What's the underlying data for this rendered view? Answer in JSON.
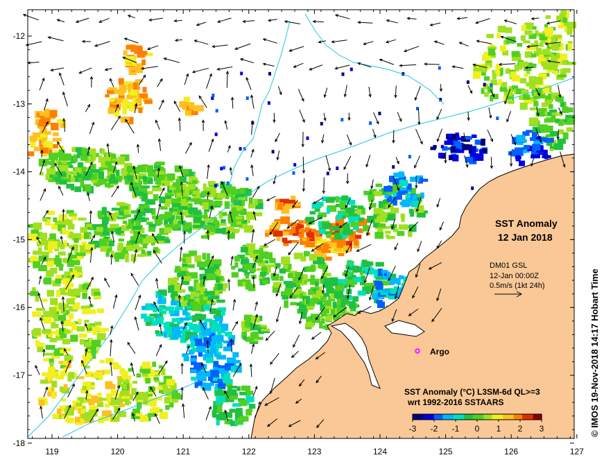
{
  "map": {
    "title_line1": "SST Anomaly",
    "title_line2": "12 Jan 2018",
    "current_source": "DM01 GSL",
    "current_time": "12-Jan 00:00Z",
    "scale_label": "0.5m/s (1kt 24h)",
    "argo_label": "Argo",
    "legend_title": "SST Anomaly (°C) L3SM-6d QL>=3",
    "legend_subtitle": "wrt 1992-2016 SSTAARS",
    "legend_ticks": [
      "-3",
      "-2",
      "-1",
      "0",
      "1",
      "2",
      "3"
    ],
    "credit": "© IMOS 19-Nov-2018 14:17 Hobart Time",
    "lon_labels": [
      "119",
      "120",
      "121",
      "122",
      "123",
      "124",
      "125",
      "126",
      "127"
    ],
    "lat_labels": [
      "-12",
      "-13",
      "-14",
      "-15",
      "-16",
      "-17",
      "-18"
    ]
  },
  "colors": {
    "land": "#f9c896",
    "coast": "#000000",
    "contour": "#1ec8e6",
    "argo": "#ff33ff",
    "palette": [
      "#00007a",
      "#0000e0",
      "#0060ff",
      "#00b8ff",
      "#00e0c0",
      "#20c040",
      "#50d020",
      "#a0e020",
      "#f0f020",
      "#ffc020",
      "#ff8000",
      "#e03000",
      "#900000"
    ]
  }
}
